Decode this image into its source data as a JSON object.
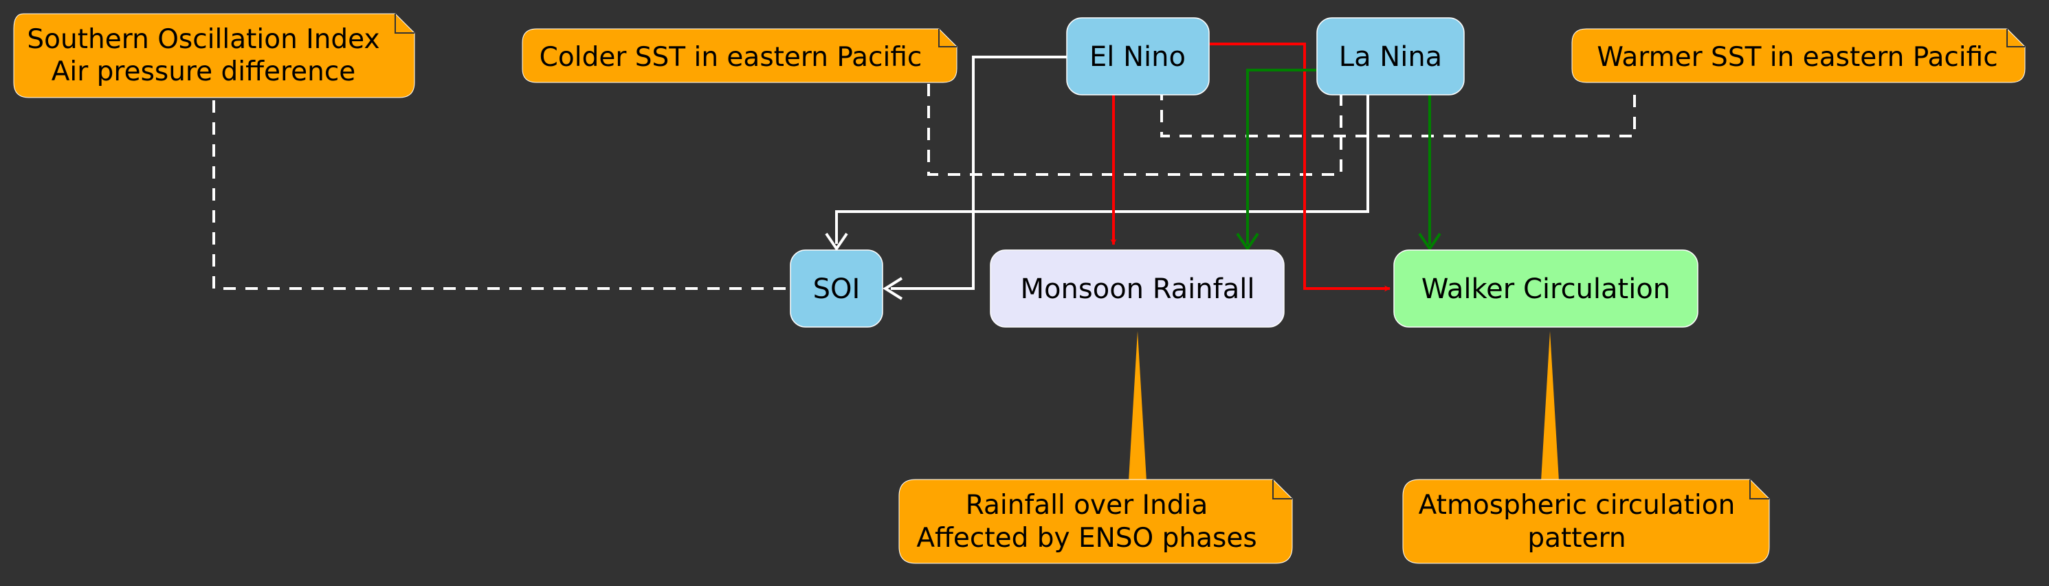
{
  "nodes": {
    "el_nino": "El Nino",
    "la_nina": "La Nina",
    "soi": "SOI",
    "monsoon": "Monsoon Rainfall",
    "walker": "Walker Circulation"
  },
  "notes": {
    "soi_note": [
      "Southern Oscillation Index",
      "Air pressure difference"
    ],
    "el_nino_note": [
      "Colder SST in eastern Pacific"
    ],
    "la_nina_note": [
      "Warmer SST in eastern Pacific"
    ],
    "monsoon_note": [
      "Rainfall over India",
      "Affected by ENSO phases"
    ],
    "walker_note": [
      "Atmospheric circulation",
      "pattern"
    ]
  },
  "colors": {
    "background": "#323232",
    "enso_node": "#87CEEB",
    "monsoon_node": "#E6E6FA",
    "walker_node": "#98FB98",
    "note": "#FFA500",
    "el_nino_edge": "#FF0000",
    "la_nina_edge": "#008000",
    "soi_edge": "#FFFFFF"
  }
}
